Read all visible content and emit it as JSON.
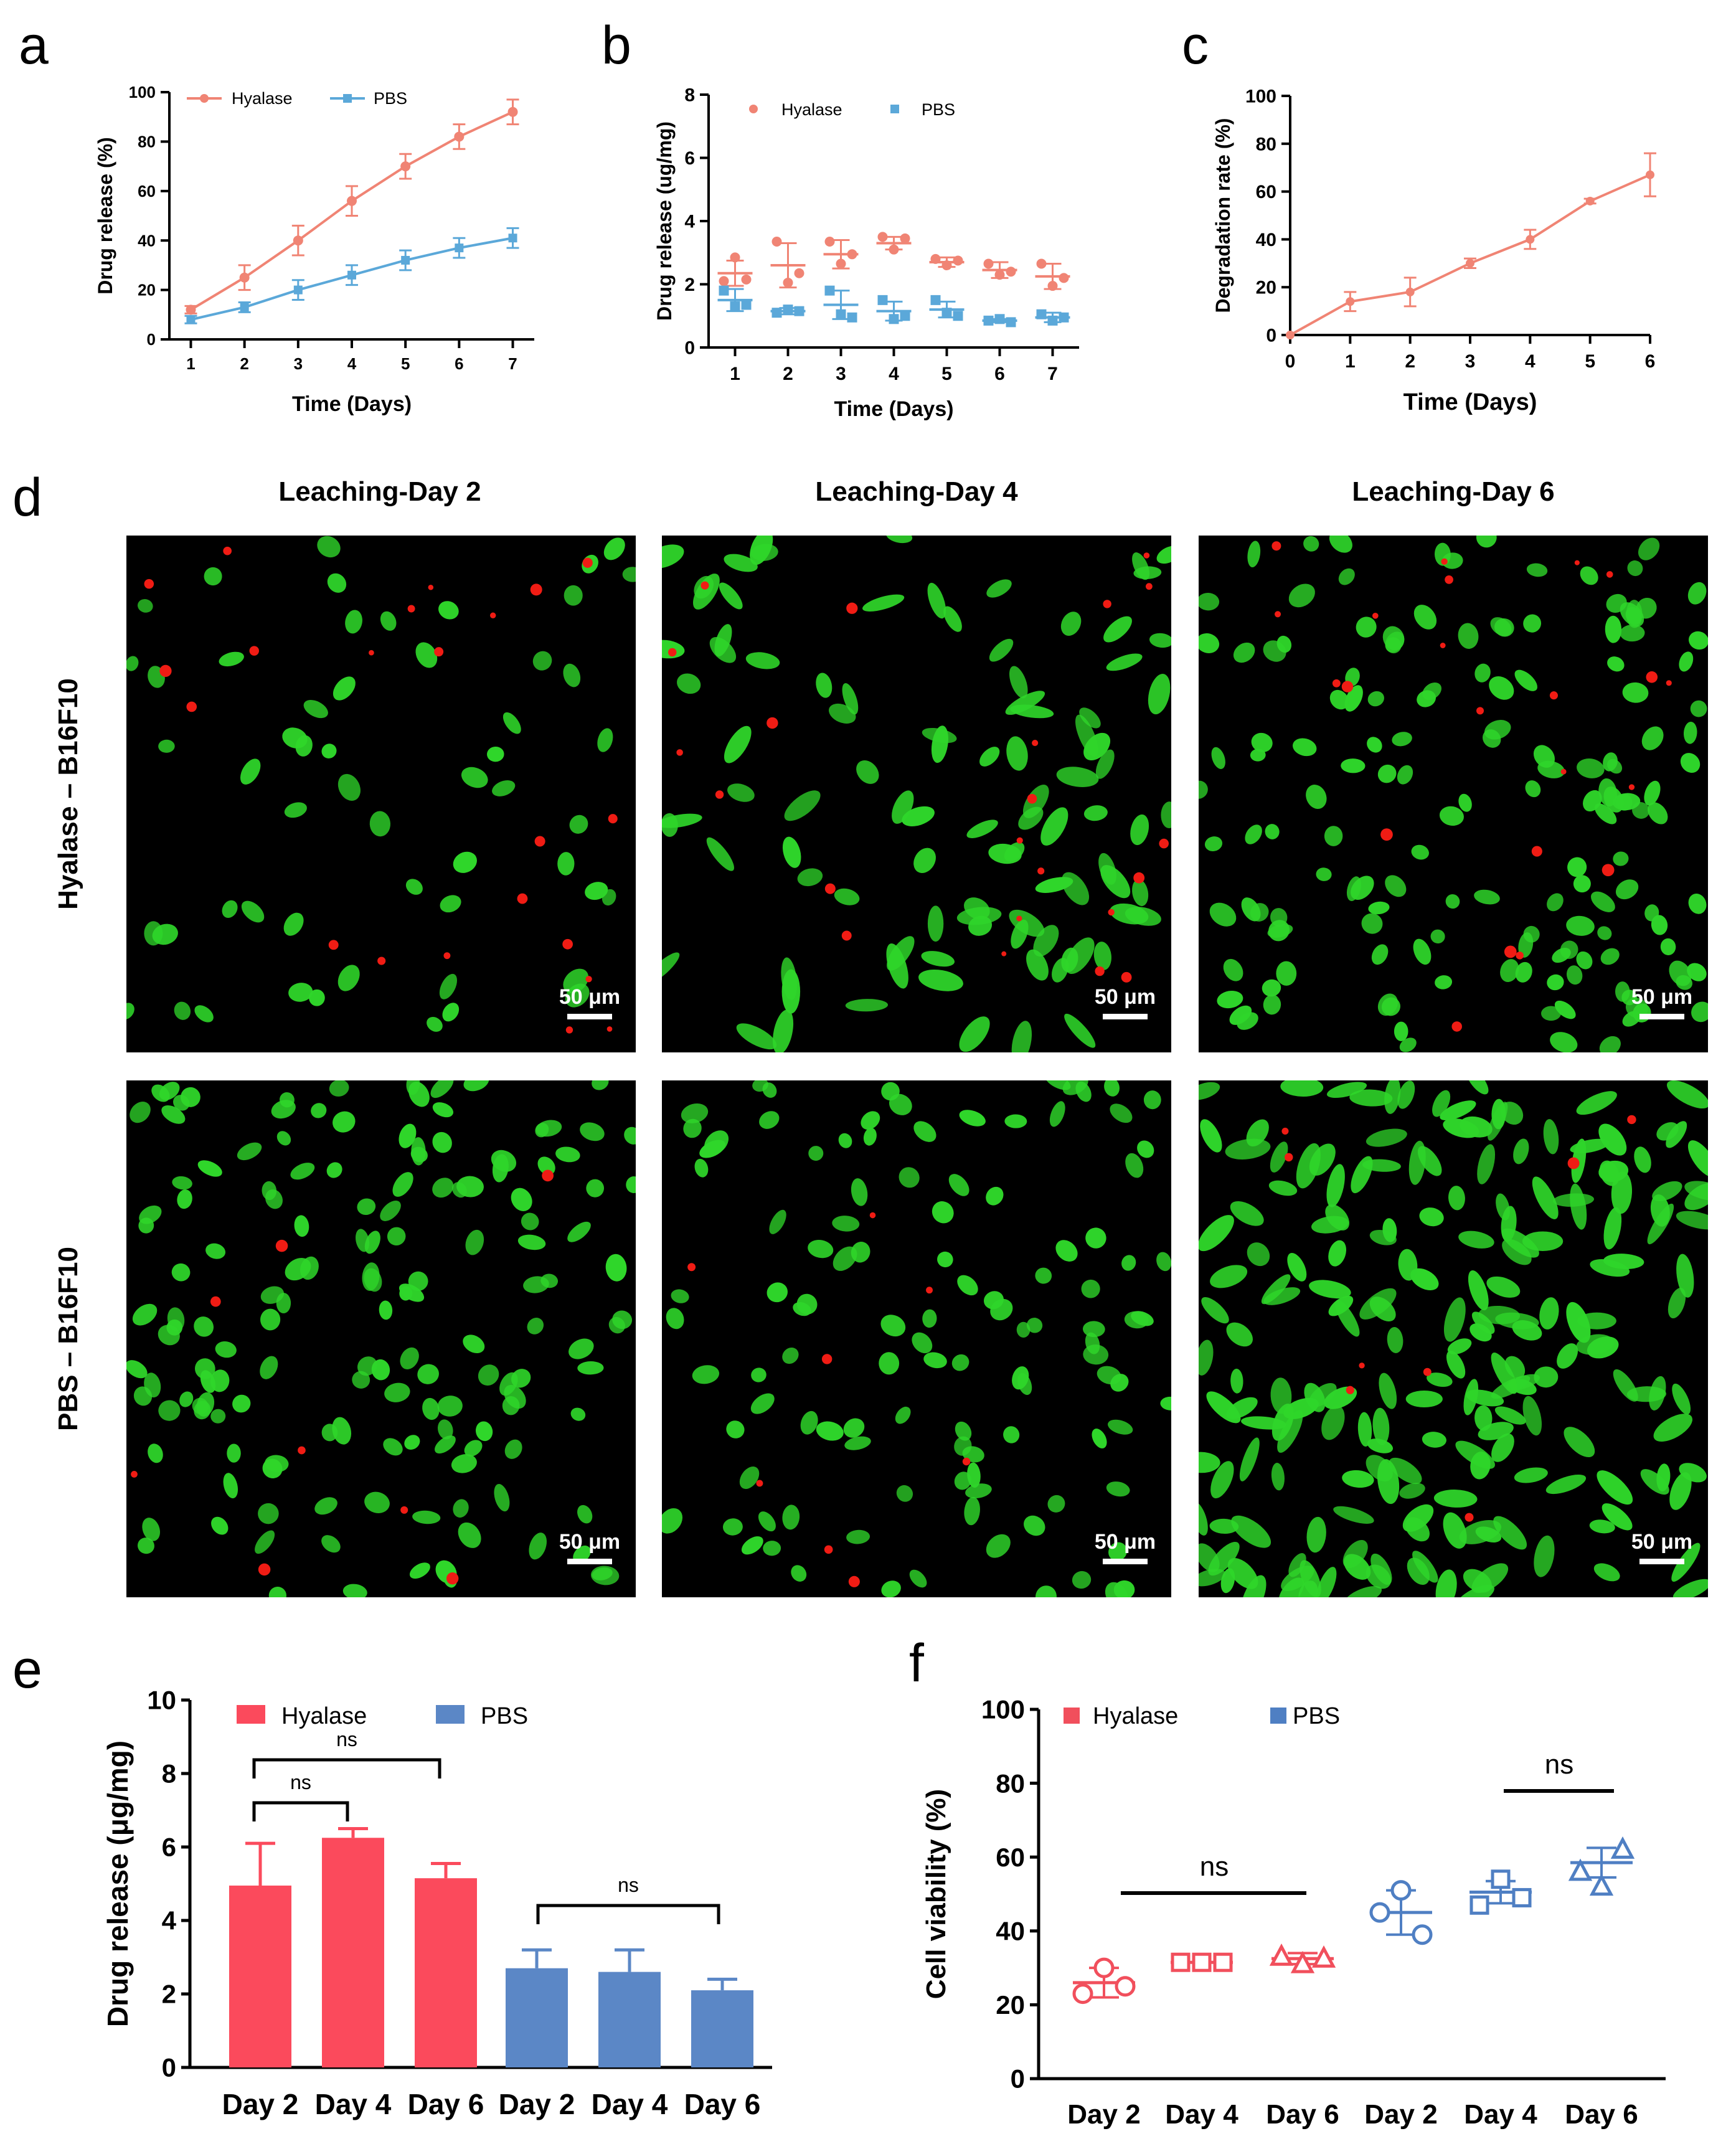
{
  "panel_letters": {
    "a": "a",
    "b": "b",
    "c": "c",
    "d": "d",
    "e": "e",
    "f": "f"
  },
  "colors": {
    "hyalase_line": "#f08474",
    "pbs_line": "#5ba8d9",
    "hyalase_bar": "#fb4a5c",
    "pbs_bar": "#5b87c6",
    "f_hyalase": "#f14f5c",
    "f_pbs": "#4f7fc3",
    "cell_green": "#2fd62a",
    "cell_red": "#f01c14"
  },
  "chart_data": [
    {
      "id": "a",
      "type": "line",
      "xlabel": "Time (Days)",
      "ylabel": "Drug release (%)",
      "x": [
        1,
        2,
        3,
        4,
        5,
        6,
        7
      ],
      "xticks": [
        "1",
        "2",
        "3",
        "4",
        "5",
        "6",
        "7"
      ],
      "yticks": [
        "0",
        "20",
        "40",
        "60",
        "80",
        "100"
      ],
      "xlim": [
        0.6,
        7.4
      ],
      "ylim": [
        0,
        100
      ],
      "series": [
        {
          "name": "Hyalase",
          "values": [
            12,
            25,
            40,
            56,
            70,
            82,
            92
          ],
          "errors": [
            1.5,
            5,
            6,
            6,
            5,
            5,
            5
          ]
        },
        {
          "name": "PBS",
          "values": [
            8,
            13,
            20,
            26,
            32,
            37,
            41
          ],
          "errors": [
            1.5,
            2,
            4,
            4,
            4,
            4,
            4
          ]
        }
      ]
    },
    {
      "id": "b",
      "type": "scatter",
      "xlabel": "Time (Days)",
      "ylabel": "Drug release (ug/mg)",
      "xticks": [
        "1",
        "2",
        "3",
        "4",
        "5",
        "6",
        "7"
      ],
      "yticks": [
        "0",
        "2",
        "4",
        "6",
        "8"
      ],
      "xlim": [
        0.5,
        7.5
      ],
      "ylim": [
        0,
        8
      ],
      "series": [
        {
          "name": "Hyalase",
          "mean": [
            2.35,
            2.6,
            2.95,
            3.3,
            2.7,
            2.45,
            2.25
          ],
          "sd": [
            0.4,
            0.7,
            0.45,
            0.2,
            0.15,
            0.25,
            0.4
          ],
          "points": [
            [
              2.1,
              2.85,
              2.15
            ],
            [
              3.35,
              2.05,
              2.35
            ],
            [
              3.35,
              2.65,
              2.95
            ],
            [
              3.5,
              3.1,
              3.45
            ],
            [
              2.8,
              2.6,
              2.75
            ],
            [
              2.65,
              2.3,
              2.4
            ],
            [
              2.65,
              1.95,
              2.2
            ]
          ]
        },
        {
          "name": "PBS",
          "mean": [
            1.5,
            1.15,
            1.35,
            1.15,
            1.2,
            0.85,
            0.95
          ],
          "sd": [
            0.35,
            0.1,
            0.45,
            0.3,
            0.25,
            0.05,
            0.15
          ],
          "points": [
            [
              1.8,
              1.3,
              1.35
            ],
            [
              1.1,
              1.2,
              1.15
            ],
            [
              1.8,
              1.05,
              0.95
            ],
            [
              1.5,
              0.9,
              1.0
            ],
            [
              1.5,
              1.1,
              1.0
            ],
            [
              0.85,
              0.9,
              0.8
            ],
            [
              1.05,
              0.85,
              0.95
            ]
          ]
        }
      ]
    },
    {
      "id": "c",
      "type": "line",
      "xlabel": "Time (Days)",
      "ylabel": "Degradation rate (%)",
      "x": [
        0,
        1,
        2,
        3,
        4,
        5,
        6
      ],
      "xticks": [
        "0",
        "1",
        "2",
        "3",
        "4",
        "5",
        "6"
      ],
      "yticks": [
        "0",
        "20",
        "40",
        "60",
        "80",
        "100"
      ],
      "xlim": [
        0,
        6
      ],
      "ylim": [
        0,
        100
      ],
      "series": [
        {
          "name": "Degradation",
          "values": [
            0,
            14,
            18,
            30,
            40,
            56,
            67
          ],
          "errors": [
            0,
            4,
            6,
            2,
            4,
            1,
            9
          ]
        }
      ]
    },
    {
      "id": "e",
      "type": "bar",
      "ylabel": "Drug release (μg/mg)",
      "categories": [
        "Day 2",
        "Day 4",
        "Day 6",
        "Day 2",
        "Day 4",
        "Day 6"
      ],
      "groups": [
        "Hyalase",
        "Hyalase",
        "Hyalase",
        "PBS",
        "PBS",
        "PBS"
      ],
      "values": [
        4.95,
        6.25,
        5.15,
        2.7,
        2.6,
        2.1
      ],
      "errors": [
        1.15,
        0.25,
        0.4,
        0.5,
        0.6,
        0.3
      ],
      "yticks": [
        "0",
        "2",
        "4",
        "6",
        "8",
        "10"
      ],
      "ylim": [
        0,
        10
      ],
      "legend": [
        "Hyalase",
        "PBS"
      ],
      "annotations": [
        "ns",
        "ns",
        "ns"
      ]
    },
    {
      "id": "f",
      "type": "scatter",
      "ylabel": "Cell viability (%)",
      "categories": [
        "Day 2",
        "Day 4",
        "Day 6",
        "Day 2",
        "Day 4",
        "Day 6"
      ],
      "groups": [
        "Hyalase",
        "Hyalase",
        "Hyalase",
        "PBS",
        "PBS",
        "PBS"
      ],
      "means": [
        26,
        31.5,
        32.5,
        45,
        50.5,
        58.5
      ],
      "sds": [
        4,
        0.2,
        1.5,
        6,
        3,
        4
      ],
      "points": [
        [
          30,
          23,
          25
        ],
        [
          31.5,
          31.5,
          31.5
        ],
        [
          31,
          33,
          32.5
        ],
        [
          51,
          45,
          39
        ],
        [
          54,
          47,
          49
        ],
        [
          52,
          56,
          62
        ]
      ],
      "markers": [
        "circle",
        "square",
        "triangle",
        "circle",
        "square",
        "triangle"
      ],
      "yticks": [
        "0",
        "20",
        "40",
        "60",
        "80",
        "100"
      ],
      "ylim": [
        0,
        100
      ],
      "legend": [
        "Hyalase",
        "PBS"
      ],
      "annotations": [
        "ns",
        "ns"
      ]
    }
  ],
  "panel_d": {
    "column_titles": [
      "Leaching-Day 2",
      "Leaching-Day 4",
      "Leaching-Day 6"
    ],
    "row_labels": [
      "Hyalase – B16F10",
      "PBS – B16F10"
    ],
    "scale_bar_label": "50 μm",
    "cell_densities": [
      [
        55,
        95,
        150
      ],
      [
        150,
        110,
        200
      ]
    ]
  }
}
